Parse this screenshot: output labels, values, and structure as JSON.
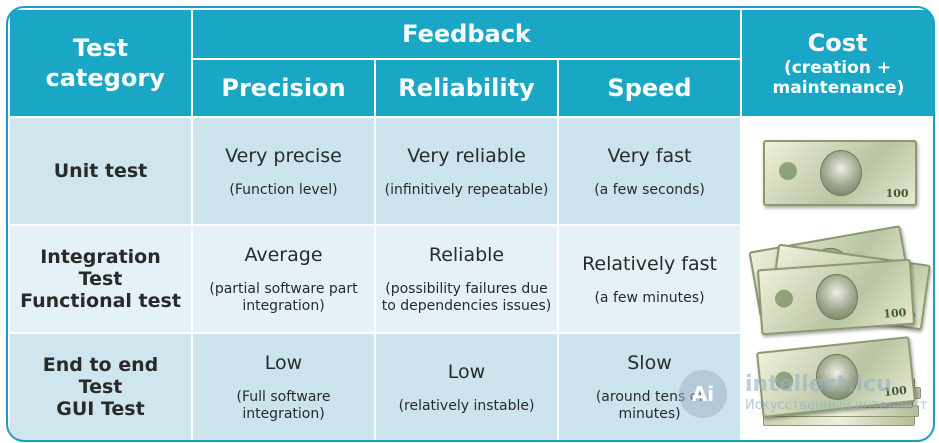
{
  "header": {
    "test_category": "Test category",
    "feedback": "Feedback",
    "precision": "Precision",
    "reliability": "Reliability",
    "speed": "Speed",
    "cost_title": "Cost",
    "cost_sub": "(creation + maintenance)"
  },
  "rows": [
    {
      "category": "Unit test",
      "precision_main": "Very precise",
      "precision_sub": "(Function level)",
      "reliability_main": "Very reliable",
      "reliability_sub": "(infinitively repeatable)",
      "speed_main": "Very fast",
      "speed_sub": "(a few seconds)",
      "cost_image": "single-banknote"
    },
    {
      "category": "Integration Test Functional test",
      "category_lines": [
        "Integration",
        "Test",
        "Functional test"
      ],
      "precision_main": "Average",
      "precision_sub": "(partial software part integration)",
      "reliability_main": "Reliable",
      "reliability_sub": "(possibility failures due to dependencies issues)",
      "speed_main": "Relatively fast",
      "speed_sub": "(a few minutes)",
      "cost_image": "several-banknotes"
    },
    {
      "category": "End to end Test GUI Test",
      "category_lines": [
        "End to end",
        "Test",
        "GUI Test"
      ],
      "precision_main": "Low",
      "precision_sub": "(Full software integration)",
      "reliability_main": "Low",
      "reliability_sub": "(relatively instable)",
      "speed_main": "Slow",
      "speed_sub": "(around tens of minutes)",
      "cost_image": "banknote-stacks"
    }
  ],
  "watermark": {
    "logo": "Ai",
    "text": "intellect.icu",
    "sub": "Искусственный интеллект"
  },
  "colors": {
    "header_bg": "#1aa7c6",
    "row_dark": "#cbe4ee",
    "row_light": "#e4f1f6",
    "text": "#2a2a2a"
  }
}
